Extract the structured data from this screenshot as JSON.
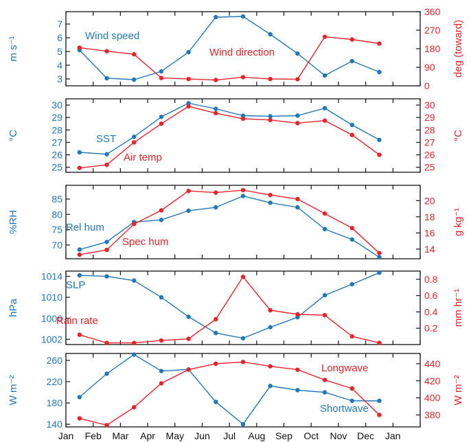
{
  "colors": {
    "blue": "#2277b7",
    "red": "#e8222b",
    "axis": "#111111"
  },
  "months": [
    "Jan",
    "Feb",
    "Mar",
    "Apr",
    "May",
    "Jun",
    "Jul",
    "Aug",
    "Sep",
    "Oct",
    "Nov",
    "Dec",
    "Jan"
  ],
  "chart_data": [
    {
      "type": "line",
      "x": [
        0.5,
        1.5,
        2.5,
        3.5,
        4.5,
        5.5,
        6.5,
        7.5,
        8.5,
        9.5,
        10.5,
        11.5
      ],
      "left_axis": {
        "label": "m s⁻¹",
        "ylim": [
          2.5,
          7.9
        ],
        "ticks": [
          3,
          4,
          5,
          6,
          7
        ],
        "tick_labels": [
          "3",
          "4",
          "5",
          "6",
          "7"
        ]
      },
      "right_axis": {
        "label": "deg (toward)",
        "ylim": [
          0,
          360
        ],
        "ticks": [
          0,
          90,
          180,
          270,
          360
        ],
        "tick_labels": [
          "0",
          "90",
          "180",
          "270",
          "360"
        ]
      },
      "series": [
        {
          "name": "Wind speed",
          "axis": "left",
          "color": "blue",
          "values": [
            5.1,
            3.05,
            2.95,
            3.55,
            4.95,
            7.5,
            7.55,
            6.25,
            4.85,
            3.25,
            4.3,
            3.5
          ]
        },
        {
          "name": "Wind direction",
          "axis": "right",
          "color": "red",
          "values": [
            185,
            168,
            153,
            38,
            33,
            28,
            42,
            33,
            32,
            238,
            225,
            205
          ]
        }
      ]
    },
    {
      "type": "line",
      "x": [
        0.5,
        1.5,
        2.5,
        3.5,
        4.5,
        5.5,
        6.5,
        7.5,
        8.5,
        9.5,
        10.5,
        11.5
      ],
      "left_axis": {
        "label": "°C",
        "ylim": [
          24.6,
          30.5
        ],
        "ticks": [
          25,
          26,
          27,
          28,
          29,
          30
        ],
        "tick_labels": [
          "25",
          "26",
          "27",
          "28",
          "29",
          "30"
        ]
      },
      "right_axis": {
        "label": "°C",
        "ylim": [
          24.6,
          30.5
        ],
        "ticks": [
          25,
          26,
          27,
          28,
          29,
          30
        ],
        "tick_labels": [
          "25",
          "26",
          "27",
          "28",
          "29",
          "30"
        ]
      },
      "series": [
        {
          "name": "SST",
          "axis": "left",
          "color": "blue",
          "values": [
            26.2,
            26.05,
            27.45,
            29.05,
            30.15,
            29.7,
            29.15,
            29.1,
            29.15,
            29.75,
            28.4,
            27.2
          ]
        },
        {
          "name": "Air temp",
          "axis": "right",
          "color": "red",
          "values": [
            24.95,
            25.2,
            27.0,
            28.5,
            29.9,
            29.35,
            28.9,
            28.8,
            28.55,
            28.75,
            27.6,
            26.0
          ]
        }
      ]
    },
    {
      "type": "line",
      "x": [
        0.5,
        1.5,
        2.5,
        3.5,
        4.5,
        5.5,
        6.5,
        7.5,
        8.5,
        9.5,
        10.5,
        11.5
      ],
      "left_axis": {
        "label": "%RH",
        "ylim": [
          65.5,
          89.5
        ],
        "ticks": [
          70,
          75,
          80,
          85
        ],
        "tick_labels": [
          "70",
          "75",
          "80",
          "85"
        ]
      },
      "right_axis": {
        "label": "g kg⁻¹",
        "ylim": [
          12.8,
          21.9
        ],
        "ticks": [
          14,
          16,
          18,
          20
        ],
        "tick_labels": [
          "14",
          "16",
          "18",
          "20"
        ]
      },
      "series": [
        {
          "name": "Rel hum",
          "axis": "left",
          "color": "blue",
          "values": [
            68.5,
            71.0,
            77.5,
            78.2,
            81.2,
            82.3,
            86.0,
            83.8,
            82.3,
            75.2,
            71.8,
            66.0
          ]
        },
        {
          "name": "Spec hum",
          "axis": "right",
          "color": "red",
          "values": [
            13.3,
            13.9,
            17.1,
            18.8,
            21.2,
            21.0,
            21.3,
            20.7,
            20.2,
            18.4,
            16.6,
            13.5
          ]
        }
      ]
    },
    {
      "type": "line",
      "x": [
        0.5,
        1.5,
        2.5,
        3.5,
        4.5,
        5.5,
        6.5,
        7.5,
        8.5,
        9.5,
        10.5,
        11.5
      ],
      "left_axis": {
        "label": "hPa",
        "ylim": [
          1001.0,
          1015.0
        ],
        "ticks": [
          1002,
          1006,
          1010,
          1014
        ],
        "tick_labels": [
          "1002",
          "1006",
          "1010",
          "1014"
        ]
      },
      "right_axis": {
        "label": "mm hr⁻¹",
        "ylim": [
          0.0,
          0.9
        ],
        "ticks": [
          0.2,
          0.4,
          0.6,
          0.8
        ],
        "tick_labels": [
          "0.2",
          "0.4",
          "0.6",
          "0.8"
        ]
      },
      "series": [
        {
          "name": "SLP",
          "axis": "left",
          "color": "blue",
          "values": [
            1014.2,
            1014.0,
            1013.2,
            1010.0,
            1006.3,
            1003.2,
            1002.2,
            1004.3,
            1006.2,
            1010.4,
            1012.5,
            1014.7
          ]
        },
        {
          "name": "Rain rate",
          "axis": "right",
          "color": "red",
          "values": [
            0.12,
            0.02,
            0.02,
            0.05,
            0.07,
            0.31,
            0.83,
            0.42,
            0.37,
            0.36,
            0.1,
            0.02
          ]
        }
      ]
    },
    {
      "type": "line",
      "x": [
        0.5,
        1.5,
        2.5,
        3.5,
        4.5,
        5.5,
        6.5,
        7.5,
        8.5,
        9.5,
        10.5,
        11.5
      ],
      "left_axis": {
        "label": "W m⁻²",
        "ylim": [
          135,
          273
        ],
        "ticks": [
          140,
          180,
          220,
          260
        ],
        "tick_labels": [
          "140",
          "180",
          "220",
          "260"
        ]
      },
      "right_axis": {
        "label": "W m⁻²",
        "ylim": [
          366,
          452
        ],
        "ticks": [
          380,
          400,
          420,
          440
        ],
        "tick_labels": [
          "380",
          "400",
          "420",
          "440"
        ]
      },
      "series": [
        {
          "name": "Shortwave",
          "axis": "left",
          "color": "blue",
          "values": [
            191,
            235,
            271,
            240,
            243,
            182,
            140,
            212,
            204,
            200,
            184,
            184
          ]
        },
        {
          "name": "Longwave",
          "axis": "right",
          "color": "red",
          "values": [
            376,
            368,
            389,
            417,
            433,
            440,
            442,
            437,
            433,
            421,
            411,
            380
          ]
        }
      ]
    }
  ]
}
